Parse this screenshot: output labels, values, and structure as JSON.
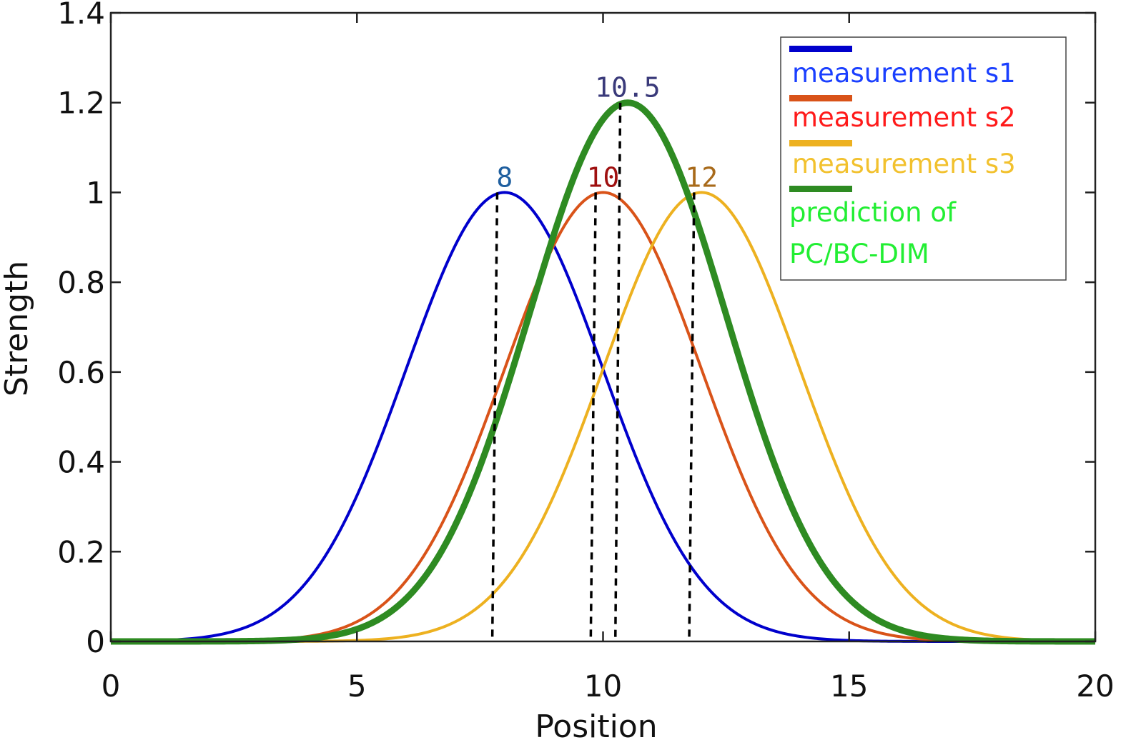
{
  "chart_data": {
    "type": "line",
    "xlabel": "Position",
    "ylabel": "Strength",
    "xlim": [
      0,
      20
    ],
    "ylim": [
      0,
      1.4
    ],
    "x_ticks": [
      "0",
      "5",
      "10",
      "15",
      "20"
    ],
    "y_ticks": [
      "0",
      "0.2",
      "0.4",
      "0.6",
      "0.8",
      "1",
      "1.2",
      "1.4"
    ],
    "grid": false,
    "legend_position": "top-right",
    "series": [
      {
        "key": "s1",
        "name": "measurement s1",
        "color": "#0000cc",
        "amplitude": 1.0,
        "center": 8,
        "sigma": 2,
        "x": [
          0,
          1,
          2,
          3,
          4,
          5,
          6,
          7,
          8,
          9,
          10,
          11,
          12,
          13,
          14,
          15,
          16,
          17,
          18,
          19,
          20
        ],
        "y": [
          0.0,
          0.0,
          0.01,
          0.05,
          0.14,
          0.32,
          0.61,
          0.88,
          1.0,
          0.88,
          0.61,
          0.32,
          0.14,
          0.05,
          0.01,
          0.0,
          0.0,
          0.0,
          0.0,
          0.0,
          0.0
        ]
      },
      {
        "key": "s2",
        "name": "measurement s2",
        "color": "#d95319",
        "amplitude": 1.0,
        "center": 10,
        "sigma": 2,
        "x": [
          0,
          1,
          2,
          3,
          4,
          5,
          6,
          7,
          8,
          9,
          10,
          11,
          12,
          13,
          14,
          15,
          16,
          17,
          18,
          19,
          20
        ],
        "y": [
          0.0,
          0.0,
          0.0,
          0.0,
          0.01,
          0.04,
          0.14,
          0.32,
          0.61,
          0.88,
          1.0,
          0.88,
          0.61,
          0.32,
          0.14,
          0.04,
          0.01,
          0.0,
          0.0,
          0.0,
          0.0
        ]
      },
      {
        "key": "s3",
        "name": "measurement s3",
        "color": "#edb120",
        "amplitude": 1.0,
        "center": 12,
        "sigma": 2,
        "x": [
          0,
          1,
          2,
          3,
          4,
          5,
          6,
          7,
          8,
          9,
          10,
          11,
          12,
          13,
          14,
          15,
          16,
          17,
          18,
          19,
          20
        ],
        "y": [
          0.0,
          0.0,
          0.0,
          0.0,
          0.0,
          0.0,
          0.01,
          0.04,
          0.14,
          0.32,
          0.61,
          0.88,
          1.0,
          0.88,
          0.61,
          0.32,
          0.14,
          0.04,
          0.01,
          0.0,
          0.0
        ]
      },
      {
        "key": "pred",
        "name": "prediction of PC/BC-DIM",
        "color": "#2e8b22",
        "amplitude": 1.2,
        "center": 10.5,
        "sigma": 2,
        "x": [
          0,
          1,
          2,
          3,
          4,
          5,
          6,
          7,
          8,
          9,
          10,
          11,
          12,
          13,
          14,
          15,
          16,
          17,
          18,
          19,
          20
        ],
        "y": [
          0.0,
          0.0,
          0.0,
          0.0,
          0.01,
          0.03,
          0.09,
          0.26,
          0.55,
          0.91,
          1.16,
          1.16,
          0.91,
          0.55,
          0.26,
          0.09,
          0.03,
          0.0,
          0.0,
          0.0,
          0.0
        ]
      }
    ],
    "legend": {
      "s1": "measurement s1",
      "s2": "measurement s2",
      "s3": "measurement s3",
      "pred_line1": "prediction of",
      "pred_line2": "PC/BC-DIM"
    },
    "legend_text_colors": {
      "s1": "#1a3fff",
      "s2": "#ff1a1a",
      "s3": "#f2c12e",
      "pred": "#22ee33"
    },
    "peak_labels": [
      {
        "key": "s1",
        "text": "8",
        "x": 8,
        "y": 1.0,
        "color": "#1f5f9f"
      },
      {
        "key": "s2",
        "text": "10",
        "x": 10,
        "y": 1.0,
        "color": "#9f1010"
      },
      {
        "key": "s3",
        "text": "12",
        "x": 12,
        "y": 1.0,
        "color": "#a86a1a"
      },
      {
        "key": "pred",
        "text": "10.5",
        "x": 10.5,
        "y": 1.2,
        "color": "#3a3a7a"
      }
    ],
    "dashed_markers": [
      {
        "x_top": 7.85,
        "x_bottom": 7.75,
        "y_top": 1.0
      },
      {
        "x_top": 9.85,
        "x_bottom": 9.75,
        "y_top": 1.0
      },
      {
        "x_top": 10.35,
        "x_bottom": 10.25,
        "y_top": 1.2
      },
      {
        "x_top": 11.85,
        "x_bottom": 11.75,
        "y_top": 1.0
      }
    ]
  }
}
